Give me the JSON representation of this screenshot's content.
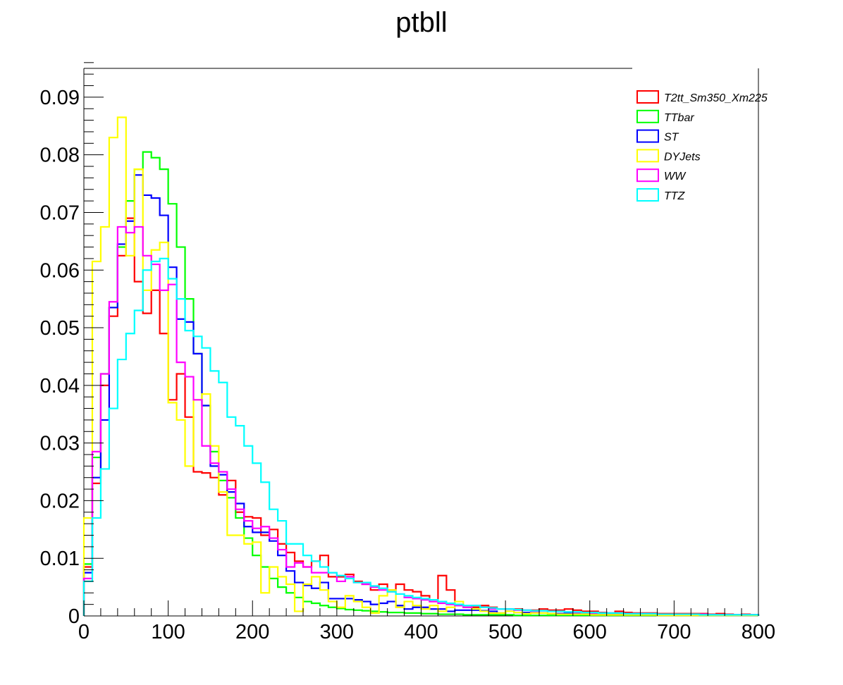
{
  "chart_data": {
    "type": "histogram-step",
    "title": "ptbll",
    "xlabel": "",
    "ylabel": "",
    "xlim": [
      0,
      800
    ],
    "ylim": [
      0,
      0.095
    ],
    "bin_width": 10,
    "x_ticks": [
      0,
      100,
      200,
      300,
      400,
      500,
      600,
      700,
      800
    ],
    "x_tick_labels": [
      "0",
      "100",
      "200",
      "300",
      "400",
      "500",
      "600",
      "700",
      "800"
    ],
    "y_ticks": [
      0,
      0.01,
      0.02,
      0.03,
      0.04,
      0.05,
      0.06,
      0.07,
      0.08,
      0.09
    ],
    "y_tick_labels": [
      "0",
      "0.01",
      "0.02",
      "0.03",
      "0.04",
      "0.05",
      "0.06",
      "0.07",
      "0.08",
      "0.09"
    ],
    "legend_position": "top-right",
    "series": [
      {
        "name": "T2tt_Sm350_Xm225",
        "color": "#ff0000",
        "values": [
          0.0085,
          0.023,
          0.04,
          0.052,
          0.0625,
          0.069,
          0.058,
          0.0525,
          0.0565,
          0.049,
          0.0375,
          0.042,
          0.0345,
          0.025,
          0.0248,
          0.024,
          0.021,
          0.0235,
          0.018,
          0.0172,
          0.017,
          0.014,
          0.015,
          0.0125,
          0.011,
          0.0095,
          0.0085,
          0.0095,
          0.0105,
          0.0068,
          0.0068,
          0.0072,
          0.006,
          0.0055,
          0.0045,
          0.0055,
          0.0045,
          0.0055,
          0.0045,
          0.0042,
          0.0035,
          0.0025,
          0.007,
          0.0045,
          0.002,
          0.0015,
          0.0015,
          0.0018,
          0.0015,
          0.0012,
          0.0012,
          0.0012,
          0.001,
          0.001,
          0.0012,
          0.001,
          0.001,
          0.0012,
          0.001,
          0.0008,
          0.0008,
          0.0006,
          0.0005,
          0.0008,
          0.0006,
          0.0005,
          0.0005,
          0.0005,
          0.0004,
          0.0004,
          0.0004,
          0.0004,
          0.0004,
          0.0004,
          0.0003,
          0.0004,
          0.0003,
          0.0002,
          0.0003,
          0.0002
        ]
      },
      {
        "name": "TTbar",
        "color": "#00ff00",
        "values": [
          0.009,
          0.0275,
          0.042,
          0.0535,
          0.064,
          0.072,
          0.0775,
          0.0805,
          0.0795,
          0.0775,
          0.0715,
          0.064,
          0.055,
          0.0455,
          0.0365,
          0.0285,
          0.0235,
          0.0205,
          0.017,
          0.0135,
          0.0105,
          0.0085,
          0.0065,
          0.005,
          0.004,
          0.0032,
          0.0025,
          0.0022,
          0.0018,
          0.0015,
          0.0013,
          0.0011,
          0.001,
          0.0009,
          0.0008,
          0.0007,
          0.0006,
          0.0006,
          0.0005,
          0.0005,
          0.0004,
          0.0004,
          0.0003,
          0.0003,
          0.0003,
          0.0002,
          0.0002,
          0.0002,
          0.0002,
          0.0002,
          0.0002,
          0.0001,
          0.0001,
          0.0001,
          0.0001,
          0.0001,
          0.0001,
          0.0001,
          0.0001,
          0.0001,
          0.0001,
          0.0001,
          0.0001,
          0.0001,
          0.0001,
          0.0001,
          0.0001,
          0.0001,
          0.0001,
          0.0001,
          0.0001,
          0.0001,
          0.0001,
          0.0001,
          0.0001,
          0.0001,
          0.0001,
          0.0001,
          0.0001,
          0.0001
        ]
      },
      {
        "name": "ST",
        "color": "#0000ff",
        "values": [
          0.0075,
          0.024,
          0.034,
          0.0535,
          0.0645,
          0.0685,
          0.0765,
          0.073,
          0.0725,
          0.0695,
          0.0605,
          0.0515,
          0.051,
          0.0455,
          0.0365,
          0.026,
          0.0245,
          0.0215,
          0.0195,
          0.0155,
          0.0145,
          0.0145,
          0.013,
          0.0105,
          0.0078,
          0.0058,
          0.0053,
          0.0048,
          0.0058,
          0.003,
          0.003,
          0.003,
          0.0028,
          0.0025,
          0.002,
          0.0022,
          0.0025,
          0.0018,
          0.0012,
          0.0015,
          0.0015,
          0.0012,
          0.0012,
          0.0008,
          0.001,
          0.001,
          0.001,
          0.0009,
          0.0008,
          0.0005,
          0.0008,
          0.0006,
          0.0006,
          0.0005,
          0.0005,
          0.0004,
          0.0004,
          0.0005,
          0.0004,
          0.0004,
          0.0003,
          0.0004,
          0.0004,
          0.0003,
          0.0003,
          0.0003,
          0.0002,
          0.0002,
          0.0002,
          0.0002,
          0.0002,
          0.0002,
          0.0002,
          0.0002,
          0.0002,
          0.0001,
          0.0002,
          0.0001,
          0.0001,
          0.0001
        ]
      },
      {
        "name": "DYJets",
        "color": "#ffff00",
        "values": [
          0.017,
          0.0615,
          0.0675,
          0.083,
          0.0865,
          0.0625,
          0.0775,
          0.0565,
          0.0635,
          0.0648,
          0.037,
          0.034,
          0.026,
          0.0375,
          0.0385,
          0.0295,
          0.0215,
          0.014,
          0.014,
          0.0125,
          0.0128,
          0.004,
          0.0085,
          0.0068,
          0.0055,
          0.0008,
          0.0055,
          0.0068,
          0.0045,
          0.0025,
          0.0015,
          0.0035,
          0.0025,
          0.0015,
          0.0005,
          0.0035,
          0.0045,
          0.0015,
          0.0025,
          0.0018,
          0.0012,
          0.0018,
          0.0008,
          0.0015,
          0.0025,
          0.0015,
          0.0012,
          0.0008,
          0.0005,
          0.0005,
          0.0008,
          0.0006,
          0.0004,
          0.0005,
          0.0005,
          0.0004,
          0.0003,
          0.0003,
          0.0003,
          0.0003,
          0.0002,
          0.0002,
          0.0002,
          0.0002,
          0.0002,
          0.0002,
          0.0002,
          0.0002,
          0.0001,
          0.0001,
          0.0001,
          0.0001,
          0.0001,
          0.0001,
          0.0001,
          0.0001,
          0.0001,
          0.0001,
          0.0001,
          0.0001
        ]
      },
      {
        "name": "WW",
        "color": "#ff00ff",
        "values": [
          0.0065,
          0.0285,
          0.042,
          0.0545,
          0.0675,
          0.0665,
          0.0675,
          0.0625,
          0.061,
          0.0565,
          0.0575,
          0.044,
          0.0415,
          0.0375,
          0.0295,
          0.0265,
          0.025,
          0.022,
          0.0185,
          0.0165,
          0.0152,
          0.0155,
          0.0135,
          0.0115,
          0.0085,
          0.0092,
          0.0085,
          0.0075,
          0.0075,
          0.0075,
          0.006,
          0.0068,
          0.0058,
          0.0055,
          0.005,
          0.0045,
          0.0042,
          0.0038,
          0.0032,
          0.003,
          0.0028,
          0.0025,
          0.0022,
          0.002,
          0.0018,
          0.0015,
          0.0018,
          0.0015,
          0.0012,
          0.0012,
          0.0012,
          0.001,
          0.001,
          0.0008,
          0.0009,
          0.0008,
          0.0008,
          0.0007,
          0.0006,
          0.0006,
          0.0005,
          0.0005,
          0.0005,
          0.0005,
          0.0004,
          0.0004,
          0.0004,
          0.0004,
          0.0003,
          0.0003,
          0.0003,
          0.0003,
          0.0003,
          0.0003,
          0.0002,
          0.0002,
          0.0002,
          0.0002,
          0.0002,
          0.0002
        ]
      },
      {
        "name": "TTZ",
        "color": "#00ffff",
        "values": [
          0.006,
          0.017,
          0.0255,
          0.036,
          0.0445,
          0.049,
          0.053,
          0.06,
          0.0615,
          0.062,
          0.0585,
          0.055,
          0.0495,
          0.0485,
          0.0465,
          0.0425,
          0.0405,
          0.0345,
          0.033,
          0.0295,
          0.0265,
          0.0232,
          0.0185,
          0.0165,
          0.0125,
          0.0125,
          0.0105,
          0.0095,
          0.0085,
          0.0075,
          0.007,
          0.0065,
          0.0058,
          0.0058,
          0.0052,
          0.0048,
          0.0042,
          0.0038,
          0.0035,
          0.0032,
          0.003,
          0.0028,
          0.0025,
          0.0022,
          0.002,
          0.0018,
          0.0018,
          0.0015,
          0.0014,
          0.0012,
          0.0012,
          0.0011,
          0.001,
          0.0009,
          0.0009,
          0.0008,
          0.0008,
          0.0007,
          0.0007,
          0.0006,
          0.0006,
          0.0005,
          0.0005,
          0.0005,
          0.0004,
          0.0004,
          0.0004,
          0.0004,
          0.0003,
          0.0003,
          0.0003,
          0.0003,
          0.0003,
          0.0002,
          0.0002,
          0.0002,
          0.0002,
          0.0002,
          0.0002,
          0.0002
        ]
      }
    ]
  }
}
